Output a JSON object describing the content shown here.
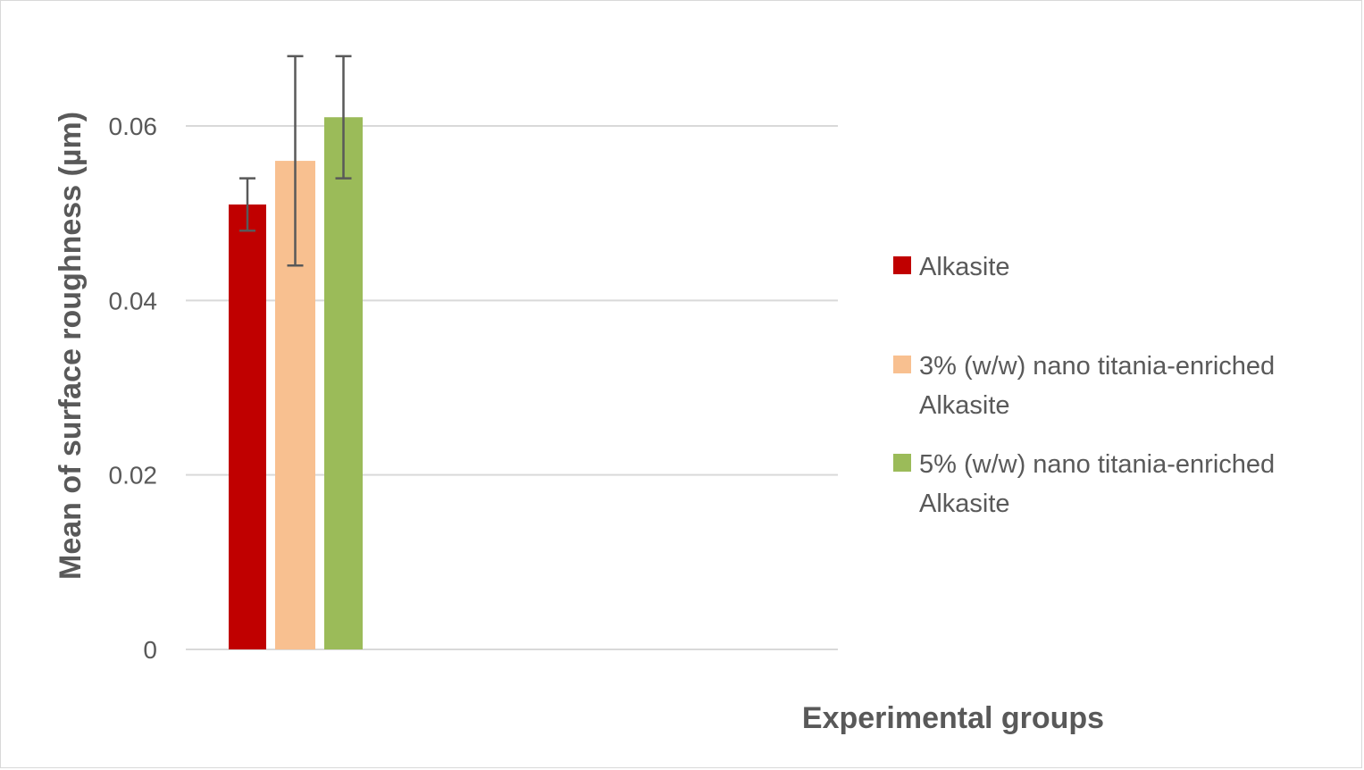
{
  "chart_data": {
    "type": "bar",
    "xlabel": "Experimental groups",
    "ylabel": "Mean of surface roughness (µm)",
    "ylim": [
      0,
      0.07
    ],
    "yticks": [
      {
        "value": 0,
        "label": "0"
      },
      {
        "value": 0.02,
        "label": "0.02"
      },
      {
        "value": 0.04,
        "label": "0.04"
      },
      {
        "value": 0.06,
        "label": "0.06"
      }
    ],
    "grid": true,
    "legend_position": "right",
    "series": [
      {
        "name": "Alkasite",
        "legend_lines": [
          "Alkasite"
        ],
        "value": 0.051,
        "error_low": 0.048,
        "error_high": 0.054,
        "color": "#c00000"
      },
      {
        "name": "3% (w/w) nano titania-enriched Alkasite",
        "legend_lines": [
          "3% (w/w) nano titania-enriched",
          "Alkasite"
        ],
        "value": 0.056,
        "error_low": 0.044,
        "error_high": 0.068,
        "color": "#f8c090"
      },
      {
        "name": "5% (w/w) nano titania-enriched Alkasite",
        "legend_lines": [
          "5% (w/w) nano titania-enriched",
          "Alkasite"
        ],
        "value": 0.061,
        "error_low": 0.054,
        "error_high": 0.068,
        "color": "#9bbb59"
      }
    ],
    "colors": {
      "grid": "#d9d9d9",
      "error_bar": "#595959",
      "text": "#595959"
    }
  }
}
